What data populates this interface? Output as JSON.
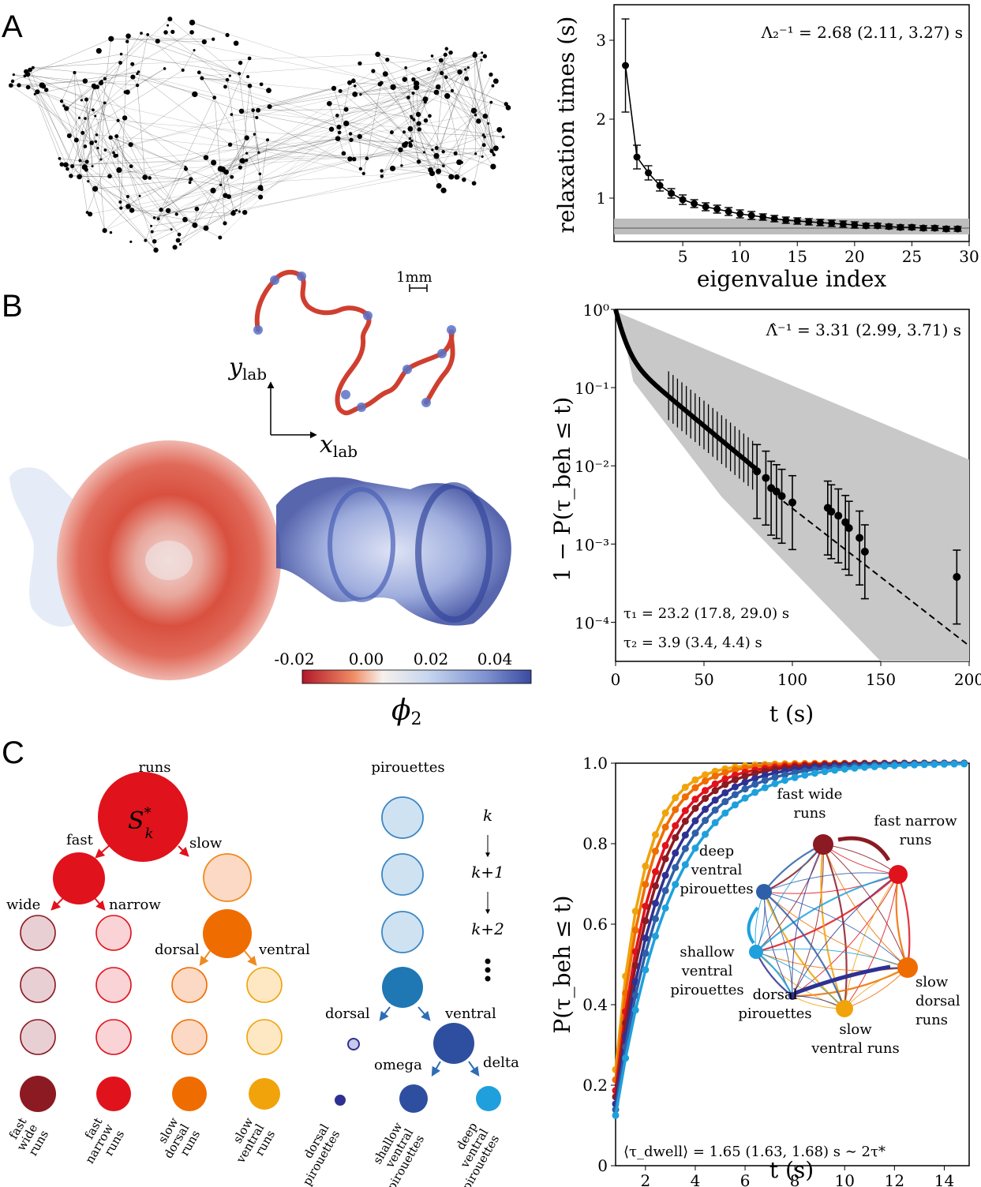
{
  "panel_labels": {
    "a": "A",
    "b": "B",
    "c": "C"
  },
  "panelA_network": {
    "description_visible": ""
  },
  "panelB_traj": {
    "scale_label": "1mm",
    "ylab": "y",
    "ylab_sub": "lab",
    "xlab": "x",
    "xlab_sub": "lab"
  },
  "colorbar": {
    "ticks": [
      "-0.02",
      "0.00",
      "0.02",
      "0.04"
    ],
    "label": "ϕ",
    "label_sub": "2",
    "colors": [
      "#b2182b",
      "#ef8a62",
      "#f7f7f7",
      "#92c5de",
      "#3a4ba0"
    ]
  },
  "chart_data": [
    {
      "type": "line",
      "panel": "A-right",
      "annotation": "Λ₂⁻¹ = 2.68 (2.11, 3.27) s",
      "xlabel": "eigenvalue index",
      "ylabel": "relaxation times (s)",
      "xlim": [
        -1,
        30
      ],
      "ylim": [
        0.45,
        3.45
      ],
      "xticks": [
        "5",
        "10",
        "15",
        "20",
        "25",
        "30"
      ],
      "yticks": [
        "1",
        "2",
        "3"
      ],
      "band": {
        "center": 0.62,
        "low": 0.54,
        "high": 0.74
      },
      "x": [
        0,
        1,
        2,
        3,
        4,
        5,
        6,
        7,
        8,
        9,
        10,
        11,
        12,
        13,
        14,
        15,
        16,
        17,
        18,
        19,
        20,
        21,
        22,
        23,
        24,
        25,
        26,
        27,
        28,
        29
      ],
      "values": [
        2.68,
        1.52,
        1.32,
        1.16,
        1.06,
        0.98,
        0.93,
        0.89,
        0.86,
        0.83,
        0.8,
        0.78,
        0.76,
        0.74,
        0.72,
        0.71,
        0.7,
        0.69,
        0.68,
        0.67,
        0.66,
        0.65,
        0.65,
        0.64,
        0.63,
        0.63,
        0.62,
        0.62,
        0.61,
        0.61
      ],
      "err": [
        0.59,
        0.15,
        0.09,
        0.07,
        0.06,
        0.06,
        0.05,
        0.05,
        0.05,
        0.05,
        0.05,
        0.05,
        0.04,
        0.04,
        0.04,
        0.04,
        0.04,
        0.04,
        0.04,
        0.04,
        0.04,
        0.03,
        0.03,
        0.03,
        0.03,
        0.03,
        0.03,
        0.03,
        0.03,
        0.03
      ]
    },
    {
      "type": "scatter",
      "panel": "B-right",
      "annotation": "Λ̂⁻¹ = 3.31 (2.99, 3.71) s",
      "tau1": "τ₁ = 23.2 (17.8, 29.0) s",
      "tau2": "τ₂ = 3.9 (3.4, 4.4) s",
      "xlabel": "t (s)",
      "ylabel": "1 − P(τ_beh ≤ t)",
      "xlim": [
        0,
        200
      ],
      "yscale": "log",
      "ylim_log10": [
        -4.5,
        0
      ],
      "xticks": [
        "0",
        "50",
        "100",
        "150",
        "200"
      ],
      "yticks": [
        "10⁰",
        "10⁻¹",
        "10⁻²",
        "10⁻³",
        "10⁻⁴"
      ],
      "points": [
        [
          80,
          0.0085
        ],
        [
          85,
          0.007
        ],
        [
          88,
          0.0052
        ],
        [
          91,
          0.0047
        ],
        [
          94,
          0.0041
        ],
        [
          100,
          0.0034
        ],
        [
          120,
          0.0029
        ],
        [
          122,
          0.0026
        ],
        [
          126,
          0.0023
        ],
        [
          130,
          0.0019
        ],
        [
          132,
          0.0016
        ],
        [
          138,
          0.0012
        ],
        [
          141,
          0.0008
        ],
        [
          193,
          0.00038
        ]
      ],
      "fit_line": [
        [
          95,
          0.0035
        ],
        [
          200,
          5e-05
        ]
      ]
    },
    {
      "type": "line",
      "panel": "C-right",
      "annotation": "⟨τ_dwell⟩ = 1.65 (1.63, 1.68) s ∼ 2τ*",
      "xlabel": "t (s)",
      "ylabel": "P(τ_beh ≤ t)",
      "xlim": [
        0.8,
        15
      ],
      "ylim": [
        0,
        1
      ],
      "xticks": [
        "2",
        "4",
        "6",
        "8",
        "10",
        "12",
        "14"
      ],
      "yticks": [
        "0",
        "0.2",
        "0.4",
        "0.6",
        "0.8",
        "1.0"
      ],
      "series": [
        {
          "color": "#f0a30a",
          "tau": 1.1
        },
        {
          "color": "#ef6c00",
          "tau": 1.25
        },
        {
          "color": "#e0121b",
          "tau": 1.45
        },
        {
          "color": "#8b1a22",
          "tau": 1.6
        },
        {
          "color": "#2e3192",
          "tau": 1.8
        },
        {
          "color": "#2e5fa8",
          "tau": 2.0
        },
        {
          "color": "#1fa0dc",
          "tau": 2.25
        }
      ]
    }
  ],
  "inset_graph": {
    "nodes": [
      {
        "id": "fast wide runs",
        "lines": [
          "fast wide",
          "runs"
        ],
        "color": "#8b1a22"
      },
      {
        "id": "fast narrow runs",
        "lines": [
          "fast narrow",
          "runs"
        ],
        "color": "#e0121b"
      },
      {
        "id": "slow dorsal runs",
        "lines": [
          "slow",
          "dorsal",
          "runs"
        ],
        "color": "#ef6c00"
      },
      {
        "id": "slow ventral runs",
        "lines": [
          "slow",
          "ventral runs"
        ],
        "color": "#f0a30a"
      },
      {
        "id": "dorsal pirouettes",
        "lines": [
          "dorsal",
          "pirouettes"
        ],
        "color": "#2e3192"
      },
      {
        "id": "shallow ventral pirouettes",
        "lines": [
          "shallow",
          "ventral",
          "pirouettes"
        ],
        "color": "#1fa0dc"
      },
      {
        "id": "deep ventral pirouettes",
        "lines": [
          "deep",
          "ventral",
          "pirouettes"
        ],
        "color": "#2e5fa8"
      }
    ]
  },
  "tree": {
    "runs": "runs",
    "root": "S",
    "root_sup": "*",
    "root_sub": "k",
    "fast": "fast",
    "slow": "slow",
    "wide": "wide",
    "narrow": "narrow",
    "dorsal": "dorsal",
    "ventral": "ventral",
    "pirouettes": "pirouettes",
    "p_dorsal": "dorsal",
    "p_ventral": "ventral",
    "omega": "omega",
    "delta": "delta",
    "k0": "k",
    "k1": "k+1",
    "k2": "k+2",
    "leaves": [
      "fast\nwide\nruns",
      "fast\nnarrow\nruns",
      "slow\ndorsal\nruns",
      "slow\nventral\nruns",
      "dorsal\npirouettes",
      "shallow\nventral\npirouettes",
      "deep\nventral\npirouettes"
    ]
  }
}
